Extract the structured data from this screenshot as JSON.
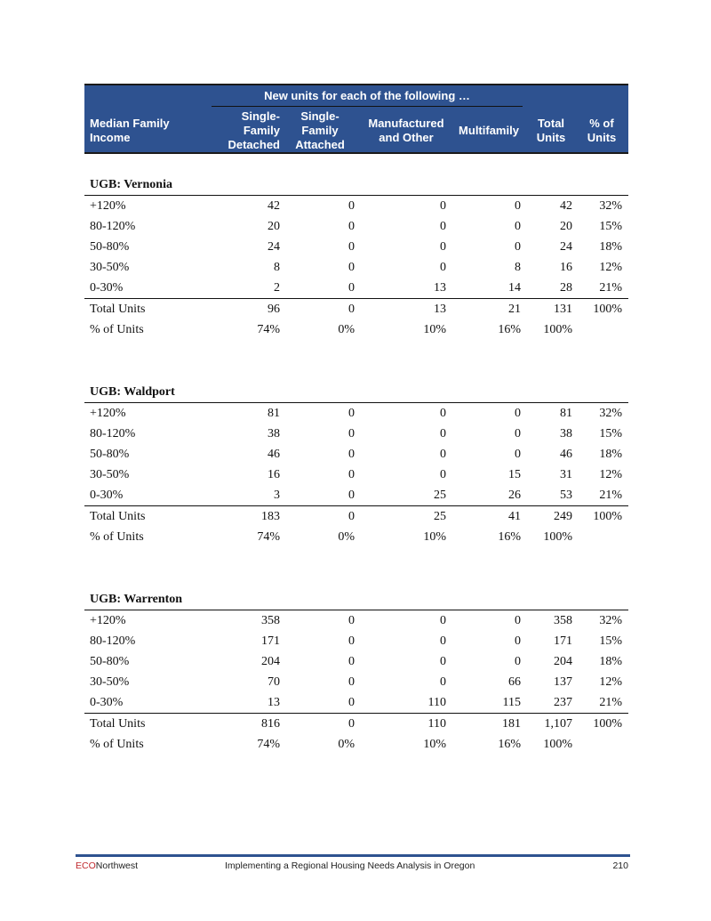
{
  "header": {
    "group_label": "New units for each of the following …",
    "col_income": [
      "Median Family",
      "Income"
    ],
    "col_sfd": [
      "Single-",
      "Family",
      "Detached"
    ],
    "col_sfa": [
      "Single-",
      "Family",
      "Attached"
    ],
    "col_mfg": [
      "Manufactured",
      "and Other"
    ],
    "col_multi": "Multifamily",
    "col_total": [
      "Total",
      "Units"
    ],
    "col_pct": [
      "% of",
      "Units"
    ]
  },
  "sections": [
    {
      "title": "UGB: Vernonia",
      "rows": [
        [
          "+120%",
          "42",
          "0",
          "0",
          "0",
          "42",
          "32%"
        ],
        [
          "80-120%",
          "20",
          "0",
          "0",
          "0",
          "20",
          "15%"
        ],
        [
          "50-80%",
          "24",
          "0",
          "0",
          "0",
          "24",
          "18%"
        ],
        [
          "30-50%",
          "8",
          "0",
          "0",
          "8",
          "16",
          "12%"
        ],
        [
          "0-30%",
          "2",
          "0",
          "13",
          "14",
          "28",
          "21%"
        ]
      ],
      "total": [
        "Total Units",
        "96",
        "0",
        "13",
        "21",
        "131",
        "100%"
      ],
      "pct": [
        "% of Units",
        "74%",
        "0%",
        "10%",
        "16%",
        "100%",
        ""
      ]
    },
    {
      "title": "UGB: Waldport",
      "rows": [
        [
          "+120%",
          "81",
          "0",
          "0",
          "0",
          "81",
          "32%"
        ],
        [
          "80-120%",
          "38",
          "0",
          "0",
          "0",
          "38",
          "15%"
        ],
        [
          "50-80%",
          "46",
          "0",
          "0",
          "0",
          "46",
          "18%"
        ],
        [
          "30-50%",
          "16",
          "0",
          "0",
          "15",
          "31",
          "12%"
        ],
        [
          "0-30%",
          "3",
          "0",
          "25",
          "26",
          "53",
          "21%"
        ]
      ],
      "total": [
        "Total Units",
        "183",
        "0",
        "25",
        "41",
        "249",
        "100%"
      ],
      "pct": [
        "% of Units",
        "74%",
        "0%",
        "10%",
        "16%",
        "100%",
        ""
      ]
    },
    {
      "title": "UGB: Warrenton",
      "rows": [
        [
          "+120%",
          "358",
          "0",
          "0",
          "0",
          "358",
          "32%"
        ],
        [
          "80-120%",
          "171",
          "0",
          "0",
          "0",
          "171",
          "15%"
        ],
        [
          "50-80%",
          "204",
          "0",
          "0",
          "0",
          "204",
          "18%"
        ],
        [
          "30-50%",
          "70",
          "0",
          "0",
          "66",
          "137",
          "12%"
        ],
        [
          "0-30%",
          "13",
          "0",
          "110",
          "115",
          "237",
          "21%"
        ]
      ],
      "total": [
        "Total Units",
        "816",
        "0",
        "110",
        "181",
        "1,107",
        "100%"
      ],
      "pct": [
        "% of Units",
        "74%",
        "0%",
        "10%",
        "16%",
        "100%",
        ""
      ]
    }
  ],
  "footer": {
    "brand_eco": "ECO",
    "brand_rest": "Northwest",
    "title": "Implementing a Regional Housing Needs Analysis in Oregon",
    "page": "210"
  },
  "colors": {
    "header_bg": "#2e5290",
    "brand_red": "#c0282d"
  }
}
